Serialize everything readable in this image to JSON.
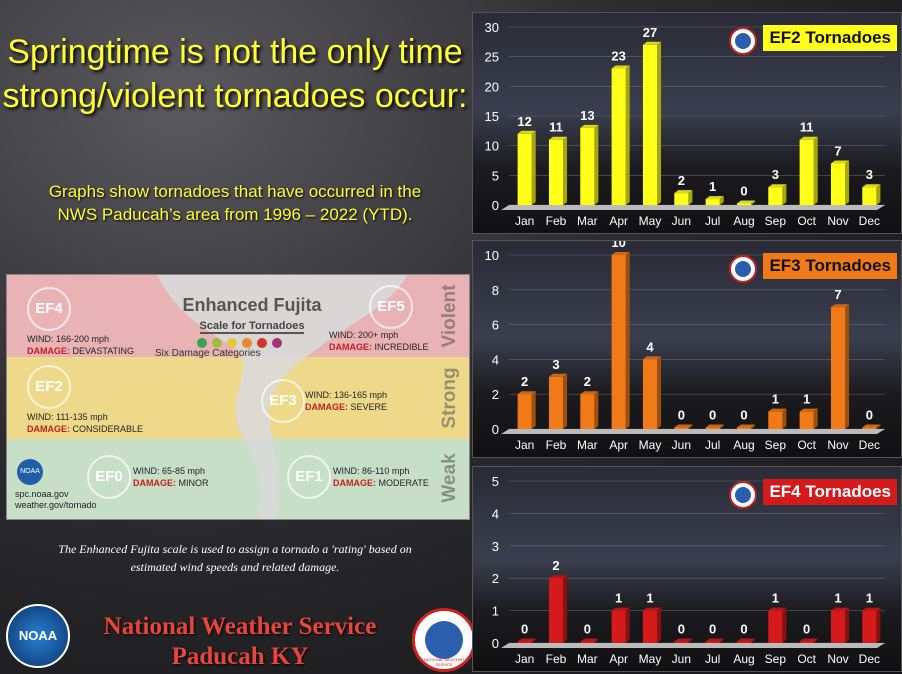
{
  "headline": {
    "line1": "Springtime is not the only time",
    "line2": "strong/violent tornadoes occur:"
  },
  "subhead": {
    "line1": "Graphs show tornadoes that have occurred in the",
    "line2": "NWS Paducah’s area from 1996 – 2022 (YTD)."
  },
  "ef_scale": {
    "title": "Enhanced Fujita",
    "subtitle": "Scale for Tornadoes",
    "categories_label": "Six Damage Categories",
    "dot_colors": [
      "#3aa34a",
      "#9bc13b",
      "#e8c53a",
      "#e88a2a",
      "#d0362c",
      "#a3307a"
    ],
    "violent_label": "Violent",
    "strong_label": "Strong",
    "weak_label": "Weak",
    "source1": "spc.noaa.gov",
    "source2": "weather.gov/tornado",
    "noaa_logo": "NOAA",
    "levels": [
      {
        "id": "EF4",
        "wind": "WIND: 166-200 mph",
        "damage_label": "DAMAGE:",
        "damage": "DEVASTATING",
        "color": "#c4322a"
      },
      {
        "id": "EF5",
        "wind": "WIND: 200+ mph",
        "damage_label": "DAMAGE:",
        "damage": "INCREDIBLE",
        "color": "#a0307a"
      },
      {
        "id": "EF2",
        "wind": "WIND: 111-135 mph",
        "damage_label": "DAMAGE:",
        "damage": "CONSIDERABLE",
        "color": "#e0b52a"
      },
      {
        "id": "EF3",
        "wind": "WIND: 136-165 mph",
        "damage_label": "DAMAGE:",
        "damage": "SEVERE",
        "color": "#e07d26"
      },
      {
        "id": "EF0",
        "wind": "WIND: 65-85 mph",
        "damage_label": "DAMAGE:",
        "damage": "MINOR",
        "color": "#2f8f3e"
      },
      {
        "id": "EF1",
        "wind": "WIND: 86-110 mph",
        "damage_label": "DAMAGE:",
        "damage": "MODERATE",
        "color": "#9bbd36"
      }
    ]
  },
  "caption": {
    "line1": "The Enhanced Fujita scale is used to assign a tornado a 'rating' based on",
    "line2": "estimated wind speeds and related damage."
  },
  "footer": {
    "line1": "National Weather Service",
    "line2": "Paducah KY",
    "noaa_logo": "NOAA",
    "nws_logo": "NATIONAL WEATHER SERVICE"
  },
  "chart_data": [
    {
      "type": "bar",
      "title": "EF2 Tornadoes",
      "categories": [
        "Jan",
        "Feb",
        "Mar",
        "Apr",
        "May",
        "Jun",
        "Jul",
        "Aug",
        "Sep",
        "Oct",
        "Nov",
        "Dec"
      ],
      "values": [
        12,
        11,
        13,
        23,
        27,
        2,
        1,
        0,
        3,
        11,
        7,
        3
      ],
      "ylim": [
        0,
        30
      ],
      "yticks": [
        0,
        5,
        10,
        15,
        20,
        25,
        30
      ],
      "bar_color": "#ffff1a",
      "title_bg": "#ffff1a",
      "title_color": "#111111",
      "grid": true
    },
    {
      "type": "bar",
      "title": "EF3 Tornadoes",
      "categories": [
        "Jan",
        "Feb",
        "Mar",
        "Apr",
        "May",
        "Jun",
        "Jul",
        "Aug",
        "Sep",
        "Oct",
        "Nov",
        "Dec"
      ],
      "values": [
        2,
        3,
        2,
        10,
        4,
        0,
        0,
        0,
        1,
        1,
        7,
        0
      ],
      "ylim": [
        0,
        10
      ],
      "yticks": [
        0,
        2,
        4,
        6,
        8,
        10
      ],
      "bar_color": "#f07a18",
      "title_bg": "#f07a18",
      "title_color": "#111111",
      "grid": true
    },
    {
      "type": "bar",
      "title": "EF4 Tornadoes",
      "categories": [
        "Jan",
        "Feb",
        "Mar",
        "Apr",
        "May",
        "Jun",
        "Jul",
        "Aug",
        "Sep",
        "Oct",
        "Nov",
        "Dec"
      ],
      "values": [
        0,
        2,
        0,
        1,
        1,
        0,
        0,
        0,
        1,
        0,
        1,
        1
      ],
      "ylim": [
        0,
        5
      ],
      "yticks": [
        0,
        1,
        2,
        3,
        4,
        5
      ],
      "bar_color": "#d41a1a",
      "title_bg": "#d41a1a",
      "title_color": "#ffffff",
      "grid": true
    }
  ]
}
